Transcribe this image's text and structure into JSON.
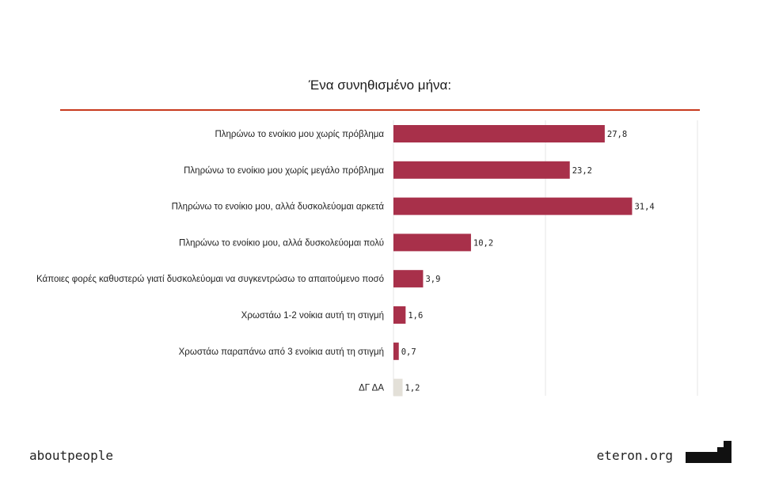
{
  "chart_data": {
    "type": "bar",
    "orientation": "horizontal",
    "title": "Ένα συνηθισμένο μήνα:",
    "categories": [
      "Πληρώνω το ενοίκιο μου χωρίς πρόβλημα",
      "Πληρώνω το ενοίκιο μου χωρίς μεγάλο πρόβλημα",
      "Πληρώνω το ενοίκιο μου, αλλά δυσκολεύομαι αρκετά",
      "Πληρώνω το ενοίκιο μου, αλλά δυσκολεύομαι πολύ",
      "Κάποιες φορές καθυστερώ γιατί δυσκολεύομαι να συγκεντρώσω  το απαιτούμενο ποσό",
      "Χρωστάω 1-2 νοίκια αυτή τη στιγμή",
      "Χρωστάω παραπάνω από 3 ενοίκια αυτή τη στιγμή",
      "ΔΓ ΔΑ"
    ],
    "values": [
      27.8,
      23.2,
      31.4,
      10.2,
      3.9,
      1.6,
      0.7,
      1.2
    ],
    "value_labels": [
      "27,8",
      "23,2",
      "31,4",
      "10,2",
      "3,9",
      "1,6",
      "0,7",
      "1,2"
    ],
    "colors": [
      "#a8304a",
      "#a8304a",
      "#a8304a",
      "#a8304a",
      "#a8304a",
      "#a8304a",
      "#a8304a",
      "#e3e0d8"
    ],
    "xlim": [
      0,
      40
    ],
    "gridlines": [
      0,
      20,
      40
    ],
    "xlabel": "",
    "ylabel": ""
  },
  "footer": {
    "left": "aboutpeople",
    "right": "eteron.org"
  }
}
